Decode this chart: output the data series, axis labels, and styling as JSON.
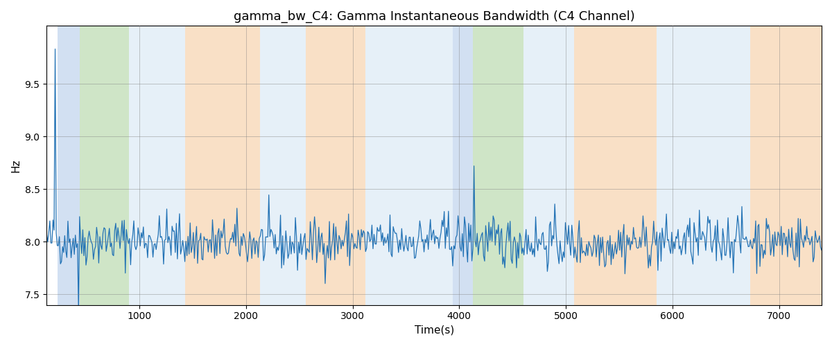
{
  "title": "gamma_bw_C4: Gamma Instantaneous Bandwidth (C4 Channel)",
  "xlabel": "Time(s)",
  "ylabel": "Hz",
  "xlim": [
    130,
    7400
  ],
  "ylim": [
    7.4,
    10.05
  ],
  "line_color": "#2272b5",
  "line_width": 0.9,
  "title_fontsize": 13,
  "bands": [
    {
      "xmin": 230,
      "xmax": 440,
      "color": "#aec8e8",
      "alpha": 0.55
    },
    {
      "xmin": 440,
      "xmax": 900,
      "color": "#a8d09a",
      "alpha": 0.55
    },
    {
      "xmin": 900,
      "xmax": 1430,
      "color": "#c8dff0",
      "alpha": 0.45
    },
    {
      "xmin": 1430,
      "xmax": 2130,
      "color": "#f5c898",
      "alpha": 0.55
    },
    {
      "xmin": 2130,
      "xmax": 2560,
      "color": "#c8dff0",
      "alpha": 0.45
    },
    {
      "xmin": 2560,
      "xmax": 3120,
      "color": "#f5c898",
      "alpha": 0.55
    },
    {
      "xmin": 3120,
      "xmax": 3940,
      "color": "#c8dff0",
      "alpha": 0.45
    },
    {
      "xmin": 3940,
      "xmax": 4130,
      "color": "#aec8e8",
      "alpha": 0.55
    },
    {
      "xmin": 4130,
      "xmax": 4600,
      "color": "#a8d09a",
      "alpha": 0.55
    },
    {
      "xmin": 4600,
      "xmax": 5080,
      "color": "#c8dff0",
      "alpha": 0.45
    },
    {
      "xmin": 5080,
      "xmax": 5850,
      "color": "#f5c898",
      "alpha": 0.55
    },
    {
      "xmin": 5850,
      "xmax": 6520,
      "color": "#c8dff0",
      "alpha": 0.45
    },
    {
      "xmin": 6520,
      "xmax": 6730,
      "color": "#c8dff0",
      "alpha": 0.45
    },
    {
      "xmin": 6730,
      "xmax": 7400,
      "color": "#f5c898",
      "alpha": 0.55
    }
  ],
  "seed": 42,
  "n_points": 730,
  "signal_mean": 8.0
}
